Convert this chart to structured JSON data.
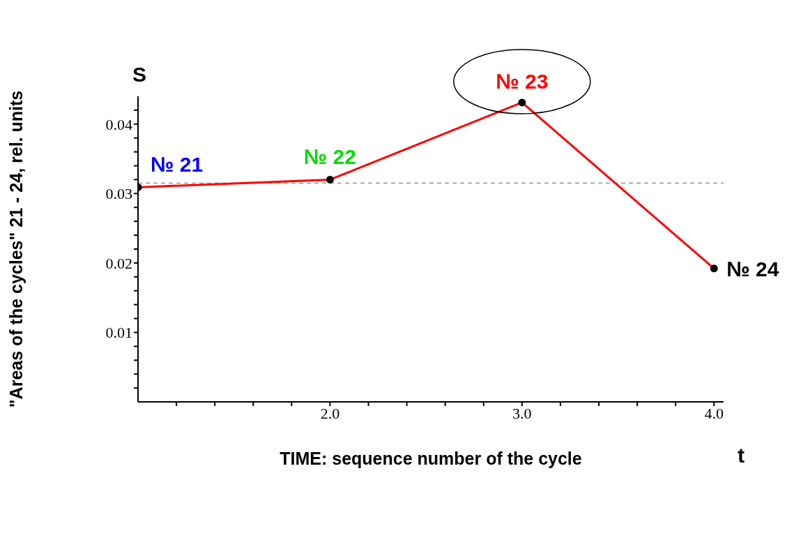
{
  "chart_data": {
    "type": "line",
    "xlabel": "TIME:  sequence number of the cycle",
    "ylabel": "\"Areas of the cycles\" 21 - 24,   rel. units",
    "x": [
      1,
      2,
      3,
      4
    ],
    "series": [
      {
        "color": "#ff0000",
        "values": [
          0.0309,
          0.032,
          0.0431,
          0.0192
        ]
      }
    ],
    "xlim": [
      1,
      4.05
    ],
    "xticks": [
      {
        "value": 1.2,
        "label": null
      },
      {
        "value": 1.4,
        "label": null
      },
      {
        "value": 1.6,
        "label": null
      },
      {
        "value": 1.8,
        "label": null
      },
      {
        "value": 2,
        "label": "2.0"
      },
      {
        "value": 2.2,
        "label": null
      },
      {
        "value": 2.4,
        "label": null
      },
      {
        "value": 2.6,
        "label": null
      },
      {
        "value": 2.8,
        "label": null
      },
      {
        "value": 3,
        "label": "3.0"
      },
      {
        "value": 3.2,
        "label": null
      },
      {
        "value": 3.4,
        "label": null
      },
      {
        "value": 3.6,
        "label": null
      },
      {
        "value": 3.8,
        "label": null
      },
      {
        "value": 4,
        "label": "4.0"
      }
    ],
    "ylim": [
      0,
      0.044
    ],
    "yticks": [
      {
        "value": 0.002,
        "label": null
      },
      {
        "value": 0.004,
        "label": null
      },
      {
        "value": 0.006,
        "label": null
      },
      {
        "value": 0.008,
        "label": null
      },
      0.01,
      {
        "value": 0.012,
        "label": null
      },
      {
        "value": 0.014,
        "label": null
      },
      {
        "value": 0.016,
        "label": null
      },
      {
        "value": 0.018,
        "label": null
      },
      0.02,
      {
        "value": 0.022,
        "label": null
      },
      {
        "value": 0.024,
        "label": null
      },
      {
        "value": 0.026,
        "label": null
      },
      {
        "value": 0.028,
        "label": null
      },
      0.03,
      {
        "value": 0.032,
        "label": null
      },
      {
        "value": 0.034,
        "label": null
      },
      {
        "value": 0.036,
        "label": null
      },
      {
        "value": 0.038,
        "label": null
      },
      0.04,
      {
        "value": 0.042,
        "label": null
      }
    ],
    "ref_lines": [
      {
        "axis": "y",
        "value": 0.0315,
        "color": "#aaaaaa",
        "line_style": "dashed"
      }
    ],
    "annotations": [
      {
        "text": "№ 21",
        "x": 1,
        "y": 0.0309
      },
      {
        "text": "№ 22",
        "x": 2,
        "y": 0.032
      },
      {
        "text": "№ 23",
        "x": 3,
        "y": 0.0431
      },
      {
        "text": "№ 24",
        "x": 4,
        "y": 0.0192
      },
      "S",
      "t"
    ],
    "marker": "circle"
  }
}
